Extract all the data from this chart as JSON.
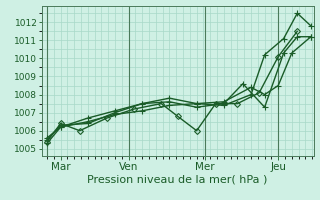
{
  "xlabel": "Pression niveau de la mer( hPa )",
  "bg_color": "#cff0e4",
  "grid_color_major": "#a8d8c8",
  "grid_color_minor": "#c0e8d8",
  "line_color": "#1a5c28",
  "ylim": [
    1004.6,
    1012.9
  ],
  "xlim": [
    -0.2,
    9.8
  ],
  "xtick_labels": [
    "Mar",
    "Ven",
    "Mer",
    "Jeu"
  ],
  "xtick_positions": [
    0.5,
    3.0,
    5.8,
    8.5
  ],
  "ytick_vals": [
    1005,
    1006,
    1007,
    1008,
    1009,
    1010,
    1011,
    1012
  ],
  "series": [
    {
      "x": [
        0.0,
        0.5,
        1.5,
        2.5,
        3.5,
        4.5,
        5.5,
        6.5,
        7.5,
        8.0,
        8.7,
        9.2,
        9.7
      ],
      "y": [
        1005.3,
        1006.2,
        1006.5,
        1006.9,
        1007.1,
        1007.4,
        1007.5,
        1007.4,
        1008.0,
        1010.2,
        1011.1,
        1012.5,
        1011.8
      ],
      "marker": "+",
      "ms": 4
    },
    {
      "x": [
        0.0,
        0.5,
        1.5,
        2.5,
        3.5,
        4.5,
        5.5,
        6.5,
        7.2,
        8.0,
        8.7,
        9.2,
        9.7
      ],
      "y": [
        1005.5,
        1006.3,
        1006.4,
        1007.0,
        1007.5,
        1007.6,
        1007.3,
        1007.5,
        1008.6,
        1007.3,
        1010.3,
        1011.2,
        1011.2
      ],
      "marker": "+",
      "ms": 4
    },
    {
      "x": [
        0.0,
        0.5,
        1.2,
        2.2,
        3.2,
        4.2,
        4.8,
        5.5,
        6.2,
        7.0,
        7.8,
        8.5,
        9.2
      ],
      "y": [
        1005.4,
        1006.4,
        1006.0,
        1006.7,
        1007.2,
        1007.5,
        1006.8,
        1006.0,
        1007.5,
        1007.5,
        1008.1,
        1010.1,
        1011.5
      ],
      "marker": "D",
      "ms": 3
    },
    {
      "x": [
        0.0,
        0.5,
        1.5,
        2.5,
        3.5,
        4.5,
        5.5,
        6.5,
        7.5,
        8.0,
        8.5,
        9.0,
        9.7
      ],
      "y": [
        1005.6,
        1006.2,
        1006.7,
        1007.1,
        1007.5,
        1007.8,
        1007.5,
        1007.6,
        1008.4,
        1008.0,
        1008.5,
        1010.3,
        1011.2
      ],
      "marker": "+",
      "ms": 4
    }
  ],
  "vline_positions": [
    0.0,
    3.0,
    5.8,
    8.5
  ],
  "xlabel_fontsize": 8,
  "ytick_fontsize": 6.5,
  "xtick_fontsize": 7.5
}
